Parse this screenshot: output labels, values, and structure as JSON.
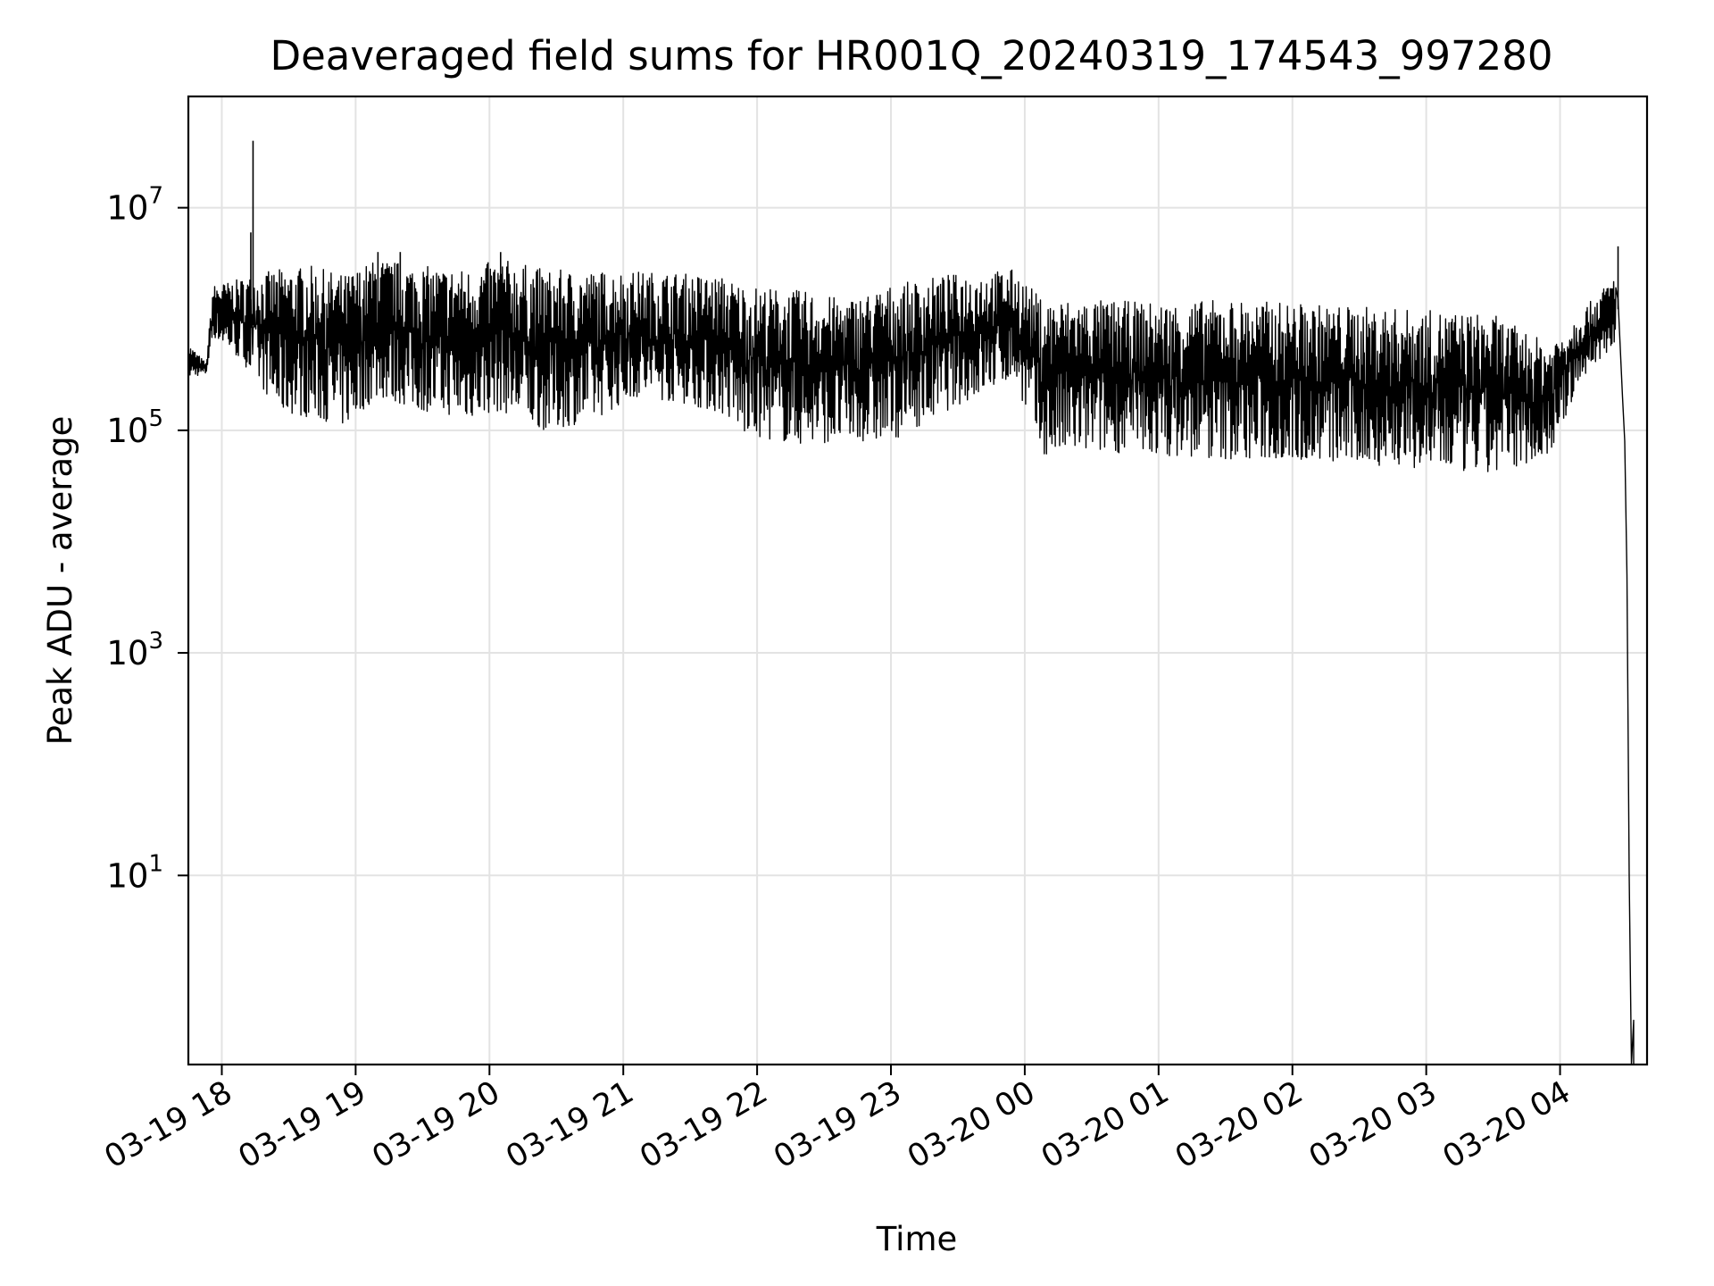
{
  "chart_data": {
    "type": "line",
    "title": "Deaveraged field sums for HR001Q_20240319_174543_997280",
    "xlabel": "Time",
    "ylabel": "Peak ADU - average",
    "yscale": "log",
    "xlim": [
      "2024-03-19 17:45",
      "2024-03-20 04:39"
    ],
    "ylim": [
      0.2,
      100000000
    ],
    "grid": true,
    "line_color": "#000000",
    "x_ticks": [
      {
        "label": "03-19 18",
        "value": "2024-03-19 18:00"
      },
      {
        "label": "03-19 19",
        "value": "2024-03-19 19:00"
      },
      {
        "label": "03-19 20",
        "value": "2024-03-19 20:00"
      },
      {
        "label": "03-19 21",
        "value": "2024-03-19 21:00"
      },
      {
        "label": "03-19 22",
        "value": "2024-03-19 22:00"
      },
      {
        "label": "03-19 23",
        "value": "2024-03-19 23:00"
      },
      {
        "label": "03-20 00",
        "value": "2024-03-20 00:00"
      },
      {
        "label": "03-20 01",
        "value": "2024-03-20 01:00"
      },
      {
        "label": "03-20 02",
        "value": "2024-03-20 02:00"
      },
      {
        "label": "03-20 03",
        "value": "2024-03-20 03:00"
      },
      {
        "label": "03-20 04",
        "value": "2024-03-20 04:00"
      }
    ],
    "y_ticks": [
      {
        "base": "10",
        "exp": "1",
        "value": 10
      },
      {
        "base": "10",
        "exp": "3",
        "value": 1000
      },
      {
        "base": "10",
        "exp": "5",
        "value": 100000
      },
      {
        "base": "10",
        "exp": "7",
        "value": 10000000
      }
    ],
    "series": [
      {
        "envelope": [
          {
            "t": "2024-03-19 17:45",
            "lo": 300000,
            "hi": 600000
          },
          {
            "t": "2024-03-19 17:53",
            "lo": 320000,
            "hi": 400000
          },
          {
            "t": "2024-03-19 17:56",
            "lo": 700000,
            "hi": 2000000
          },
          {
            "t": "2024-03-19 18:05",
            "lo": 500000,
            "hi": 2200000
          },
          {
            "t": "2024-03-19 18:15",
            "lo": 300000,
            "hi": 2500000
          },
          {
            "t": "2024-03-19 18:25",
            "lo": 150000,
            "hi": 2800000
          },
          {
            "t": "2024-03-19 18:40",
            "lo": 130000,
            "hi": 3000000
          },
          {
            "t": "2024-03-19 18:55",
            "lo": 110000,
            "hi": 2500000
          },
          {
            "t": "2024-03-19 19:10",
            "lo": 200000,
            "hi": 3500000
          },
          {
            "t": "2024-03-19 19:30",
            "lo": 150000,
            "hi": 3000000
          },
          {
            "t": "2024-03-19 19:50",
            "lo": 130000,
            "hi": 2800000
          },
          {
            "t": "2024-03-19 20:05",
            "lo": 150000,
            "hi": 3500000
          },
          {
            "t": "2024-03-19 20:25",
            "lo": 100000,
            "hi": 2800000
          },
          {
            "t": "2024-03-19 20:45",
            "lo": 120000,
            "hi": 2700000
          },
          {
            "t": "2024-03-19 21:05",
            "lo": 200000,
            "hi": 2700000
          },
          {
            "t": "2024-03-19 21:25",
            "lo": 180000,
            "hi": 2600000
          },
          {
            "t": "2024-03-19 21:45",
            "lo": 140000,
            "hi": 2400000
          },
          {
            "t": "2024-03-19 21:55",
            "lo": 90000,
            "hi": 2000000
          },
          {
            "t": "2024-03-19 22:20",
            "lo": 75000,
            "hi": 1800000
          },
          {
            "t": "2024-03-19 22:40",
            "lo": 80000,
            "hi": 1500000
          },
          {
            "t": "2024-03-19 23:00",
            "lo": 80000,
            "hi": 2000000
          },
          {
            "t": "2024-03-19 23:25",
            "lo": 150000,
            "hi": 2500000
          },
          {
            "t": "2024-03-19 23:55",
            "lo": 300000,
            "hi": 2800000
          },
          {
            "t": "2024-03-20 00:08",
            "lo": 60000,
            "hi": 1500000
          },
          {
            "t": "2024-03-20 00:30",
            "lo": 65000,
            "hi": 1500000
          },
          {
            "t": "2024-03-20 01:00",
            "lo": 60000,
            "hi": 1400000
          },
          {
            "t": "2024-03-20 01:30",
            "lo": 55000,
            "hi": 1500000
          },
          {
            "t": "2024-03-20 02:00",
            "lo": 55000,
            "hi": 1400000
          },
          {
            "t": "2024-03-20 02:30",
            "lo": 50000,
            "hi": 1300000
          },
          {
            "t": "2024-03-20 03:00",
            "lo": 45000,
            "hi": 1200000
          },
          {
            "t": "2024-03-20 03:30",
            "lo": 40000,
            "hi": 1100000
          },
          {
            "t": "2024-03-20 03:55",
            "lo": 60000,
            "hi": 600000
          },
          {
            "t": "2024-03-20 04:10",
            "lo": 300000,
            "hi": 1200000
          },
          {
            "t": "2024-03-20 04:25",
            "lo": 600000,
            "hi": 2500000
          }
        ],
        "spikes": [
          {
            "t": "2024-03-19 18:14",
            "value": 40000000
          },
          {
            "t": "2024-03-19 18:13",
            "value": 6000000
          },
          {
            "t": "2024-03-19 19:10",
            "value": 4000000
          },
          {
            "t": "2024-03-19 19:20",
            "value": 4000000
          },
          {
            "t": "2024-03-19 20:05",
            "value": 4000000
          },
          {
            "t": "2024-03-20 04:26",
            "value": 4500000
          }
        ],
        "tail": [
          {
            "t": "2024-03-20 04:26",
            "value": 1500000
          },
          {
            "t": "2024-03-20 04:28",
            "value": 200000
          },
          {
            "t": "2024-03-20 04:29",
            "value": 80000
          },
          {
            "t": "2024-03-20 04:30",
            "value": 5000
          },
          {
            "t": "2024-03-20 04:31",
            "value": 10
          },
          {
            "t": "2024-03-20 04:32",
            "value": 0.2
          },
          {
            "t": "2024-03-20 04:33",
            "value": 0.5
          },
          {
            "t": "2024-03-20 04:33",
            "value": 0.2
          }
        ]
      }
    ]
  }
}
